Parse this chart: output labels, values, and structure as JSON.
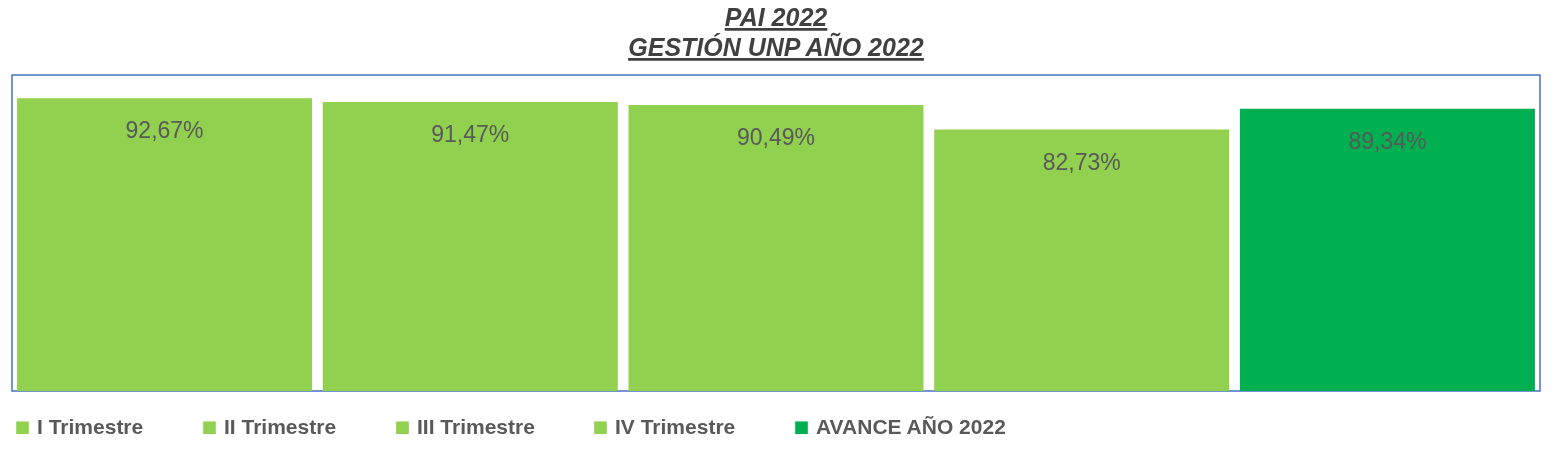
{
  "chart_data": {
    "type": "bar",
    "title": "PAI 2022\nGESTIÓN UNP AÑO 2022",
    "categories": [
      null
    ],
    "series": [
      {
        "name": "I Trimestre",
        "color": "#92d050",
        "values": [
          92.67
        ],
        "value_labels": [
          "92,67%"
        ]
      },
      {
        "name": "II Trimestre",
        "color": "#92d050",
        "values": [
          91.47
        ],
        "value_labels": [
          "91,47%"
        ]
      },
      {
        "name": "III Trimestre",
        "color": "#92d050",
        "values": [
          90.49
        ],
        "value_labels": [
          "90,49%"
        ]
      },
      {
        "name": "IV Trimestre",
        "color": "#92d050",
        "values": [
          82.73
        ],
        "value_labels": [
          "82,73%"
        ]
      },
      {
        "name": "AVANCE AÑO 2022",
        "color": "#00b050",
        "values": [
          89.34
        ],
        "value_labels": [
          "89,34%"
        ]
      }
    ],
    "tick_labels": false,
    "legend": "bottom"
  }
}
